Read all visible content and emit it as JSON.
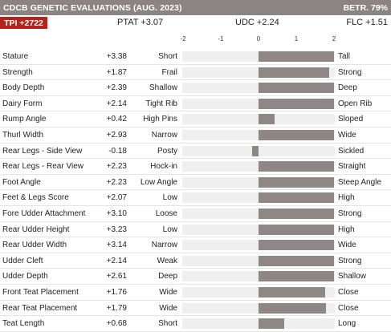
{
  "header": {
    "title": "CDCB GENETIC EVALUATIONS (AUG. 2023)",
    "reliability": "BETR. 79%"
  },
  "summary": {
    "tpi": "TPI +2722",
    "ptat": "PTAT +3.07",
    "udc": "UDC +2.24",
    "flc": "FLC +1.51"
  },
  "axis": {
    "ticks": [
      "-2",
      "-1",
      "0",
      "1",
      "2"
    ],
    "range": [
      -2,
      2
    ]
  },
  "traits": [
    {
      "name": "Stature",
      "value_text": "+3.38",
      "value": 3.38,
      "low": "Short",
      "high": "Tall"
    },
    {
      "name": "Strength",
      "value_text": "+1.87",
      "value": 1.87,
      "low": "Frail",
      "high": "Strong"
    },
    {
      "name": "Body Depth",
      "value_text": "+2.39",
      "value": 2.39,
      "low": "Shallow",
      "high": "Deep"
    },
    {
      "name": "Dairy Form",
      "value_text": "+2.14",
      "value": 2.14,
      "low": "Tight Rib",
      "high": "Open Rib"
    },
    {
      "name": "Rump Angle",
      "value_text": "+0.42",
      "value": 0.42,
      "low": "High Pins",
      "high": "Sloped"
    },
    {
      "name": "Thurl Width",
      "value_text": "+2.93",
      "value": 2.93,
      "low": "Narrow",
      "high": "Wide"
    },
    {
      "name": "Rear Legs - Side View",
      "value_text": "-0.18",
      "value": -0.18,
      "low": "Posty",
      "high": "Sickled"
    },
    {
      "name": "Rear Legs - Rear View",
      "value_text": "+2.23",
      "value": 2.23,
      "low": "Hock-in",
      "high": "Straight"
    },
    {
      "name": "Foot Angle",
      "value_text": "+2.23",
      "value": 2.23,
      "low": "Low Angle",
      "high": "Steep Angle"
    },
    {
      "name": "Feet & Legs Score",
      "value_text": "+2.07",
      "value": 2.07,
      "low": "Low",
      "high": "High"
    },
    {
      "name": "Fore Udder Attachment",
      "value_text": "+3.10",
      "value": 3.1,
      "low": "Loose",
      "high": "Strong"
    },
    {
      "name": "Rear Udder Height",
      "value_text": "+3.23",
      "value": 3.23,
      "low": "Low",
      "high": "High"
    },
    {
      "name": "Rear Udder Width",
      "value_text": "+3.14",
      "value": 3.14,
      "low": "Narrow",
      "high": "Wide"
    },
    {
      "name": "Udder Cleft",
      "value_text": "+2.14",
      "value": 2.14,
      "low": "Weak",
      "high": "Strong"
    },
    {
      "name": "Udder Depth",
      "value_text": "+2.61",
      "value": 2.61,
      "low": "Deep",
      "high": "Shallow"
    },
    {
      "name": "Front Teat Placement",
      "value_text": "+1.76",
      "value": 1.76,
      "low": "Wide",
      "high": "Close"
    },
    {
      "name": "Rear Teat Placement",
      "value_text": "+1.79",
      "value": 1.79,
      "low": "Wide",
      "high": "Close"
    },
    {
      "name": "Teat Length",
      "value_text": "+0.68",
      "value": 0.68,
      "low": "Short",
      "high": "Long"
    }
  ],
  "colors": {
    "header_bg": "#8c8483",
    "tpi_bg": "#b5241c",
    "bar": "#8f8786",
    "track": "#efefef"
  }
}
